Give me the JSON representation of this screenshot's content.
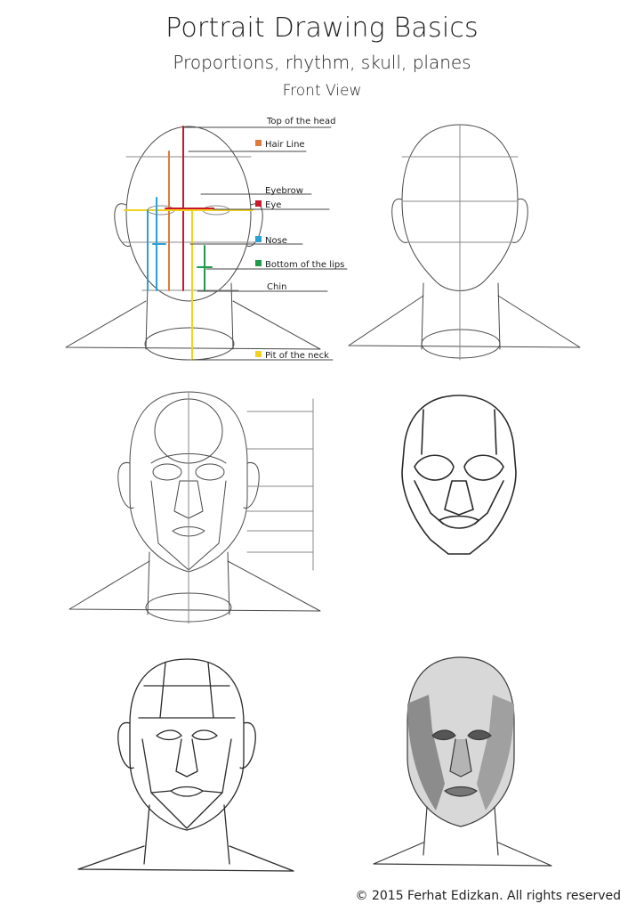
{
  "title": "Portrait Drawing Basics",
  "subtitle": "Proportions, rhythm, skull, planes",
  "view": "Front View",
  "labels": [
    {
      "id": "top",
      "text": "Top of the head",
      "color": ""
    },
    {
      "id": "hair",
      "text": "Hair Line",
      "color": "#e07a3c"
    },
    {
      "id": "brow",
      "text": "Eyebrow",
      "color": ""
    },
    {
      "id": "eye",
      "text": "Eye",
      "color": "#c8182a"
    },
    {
      "id": "nose",
      "text": "Nose",
      "color": "#2a9fd8"
    },
    {
      "id": "lips",
      "text": "Bottom of the lips",
      "color": "#1f9a4b"
    },
    {
      "id": "chin",
      "text": "Chin",
      "color": ""
    },
    {
      "id": "neck",
      "text": "Pit of the neck",
      "color": "#f2d21e"
    }
  ],
  "colors": {
    "red": "#c8182a",
    "orange": "#e07a3c",
    "yellow": "#f2d21e",
    "blue": "#2a9fd8",
    "green": "#1f9a4b",
    "pencil": "#4a4a4a"
  },
  "copyright": "© 2015 Ferhat Edizkan.  All rights reserved"
}
